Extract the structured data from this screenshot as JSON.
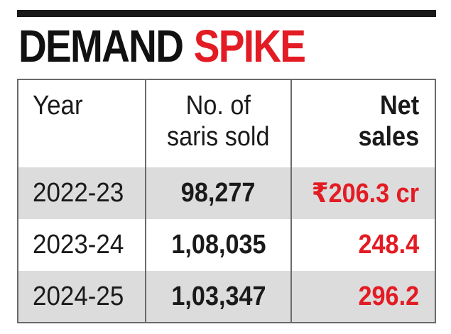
{
  "headline": {
    "word1": "DEMAND",
    "word2": "SPIKE"
  },
  "colors": {
    "accent": "#e31b23",
    "text": "#1a1a1a",
    "row_shade": "#dcdcdc"
  },
  "chart_data": {
    "type": "table",
    "title": "DEMAND SPIKE",
    "columns": [
      {
        "lines": [
          "Year"
        ]
      },
      {
        "lines": [
          "No. of",
          "saris sold"
        ]
      },
      {
        "lines": [
          "Net",
          "sales"
        ]
      }
    ],
    "rows": [
      {
        "year": "2022-23",
        "saris_sold": "98,277",
        "net_sales": "₹206.3 cr"
      },
      {
        "year": "2023-24",
        "saris_sold": "1,08,035",
        "net_sales": "248.4"
      },
      {
        "year": "2024-25",
        "saris_sold": "1,03,347",
        "net_sales": "296.2"
      }
    ]
  }
}
